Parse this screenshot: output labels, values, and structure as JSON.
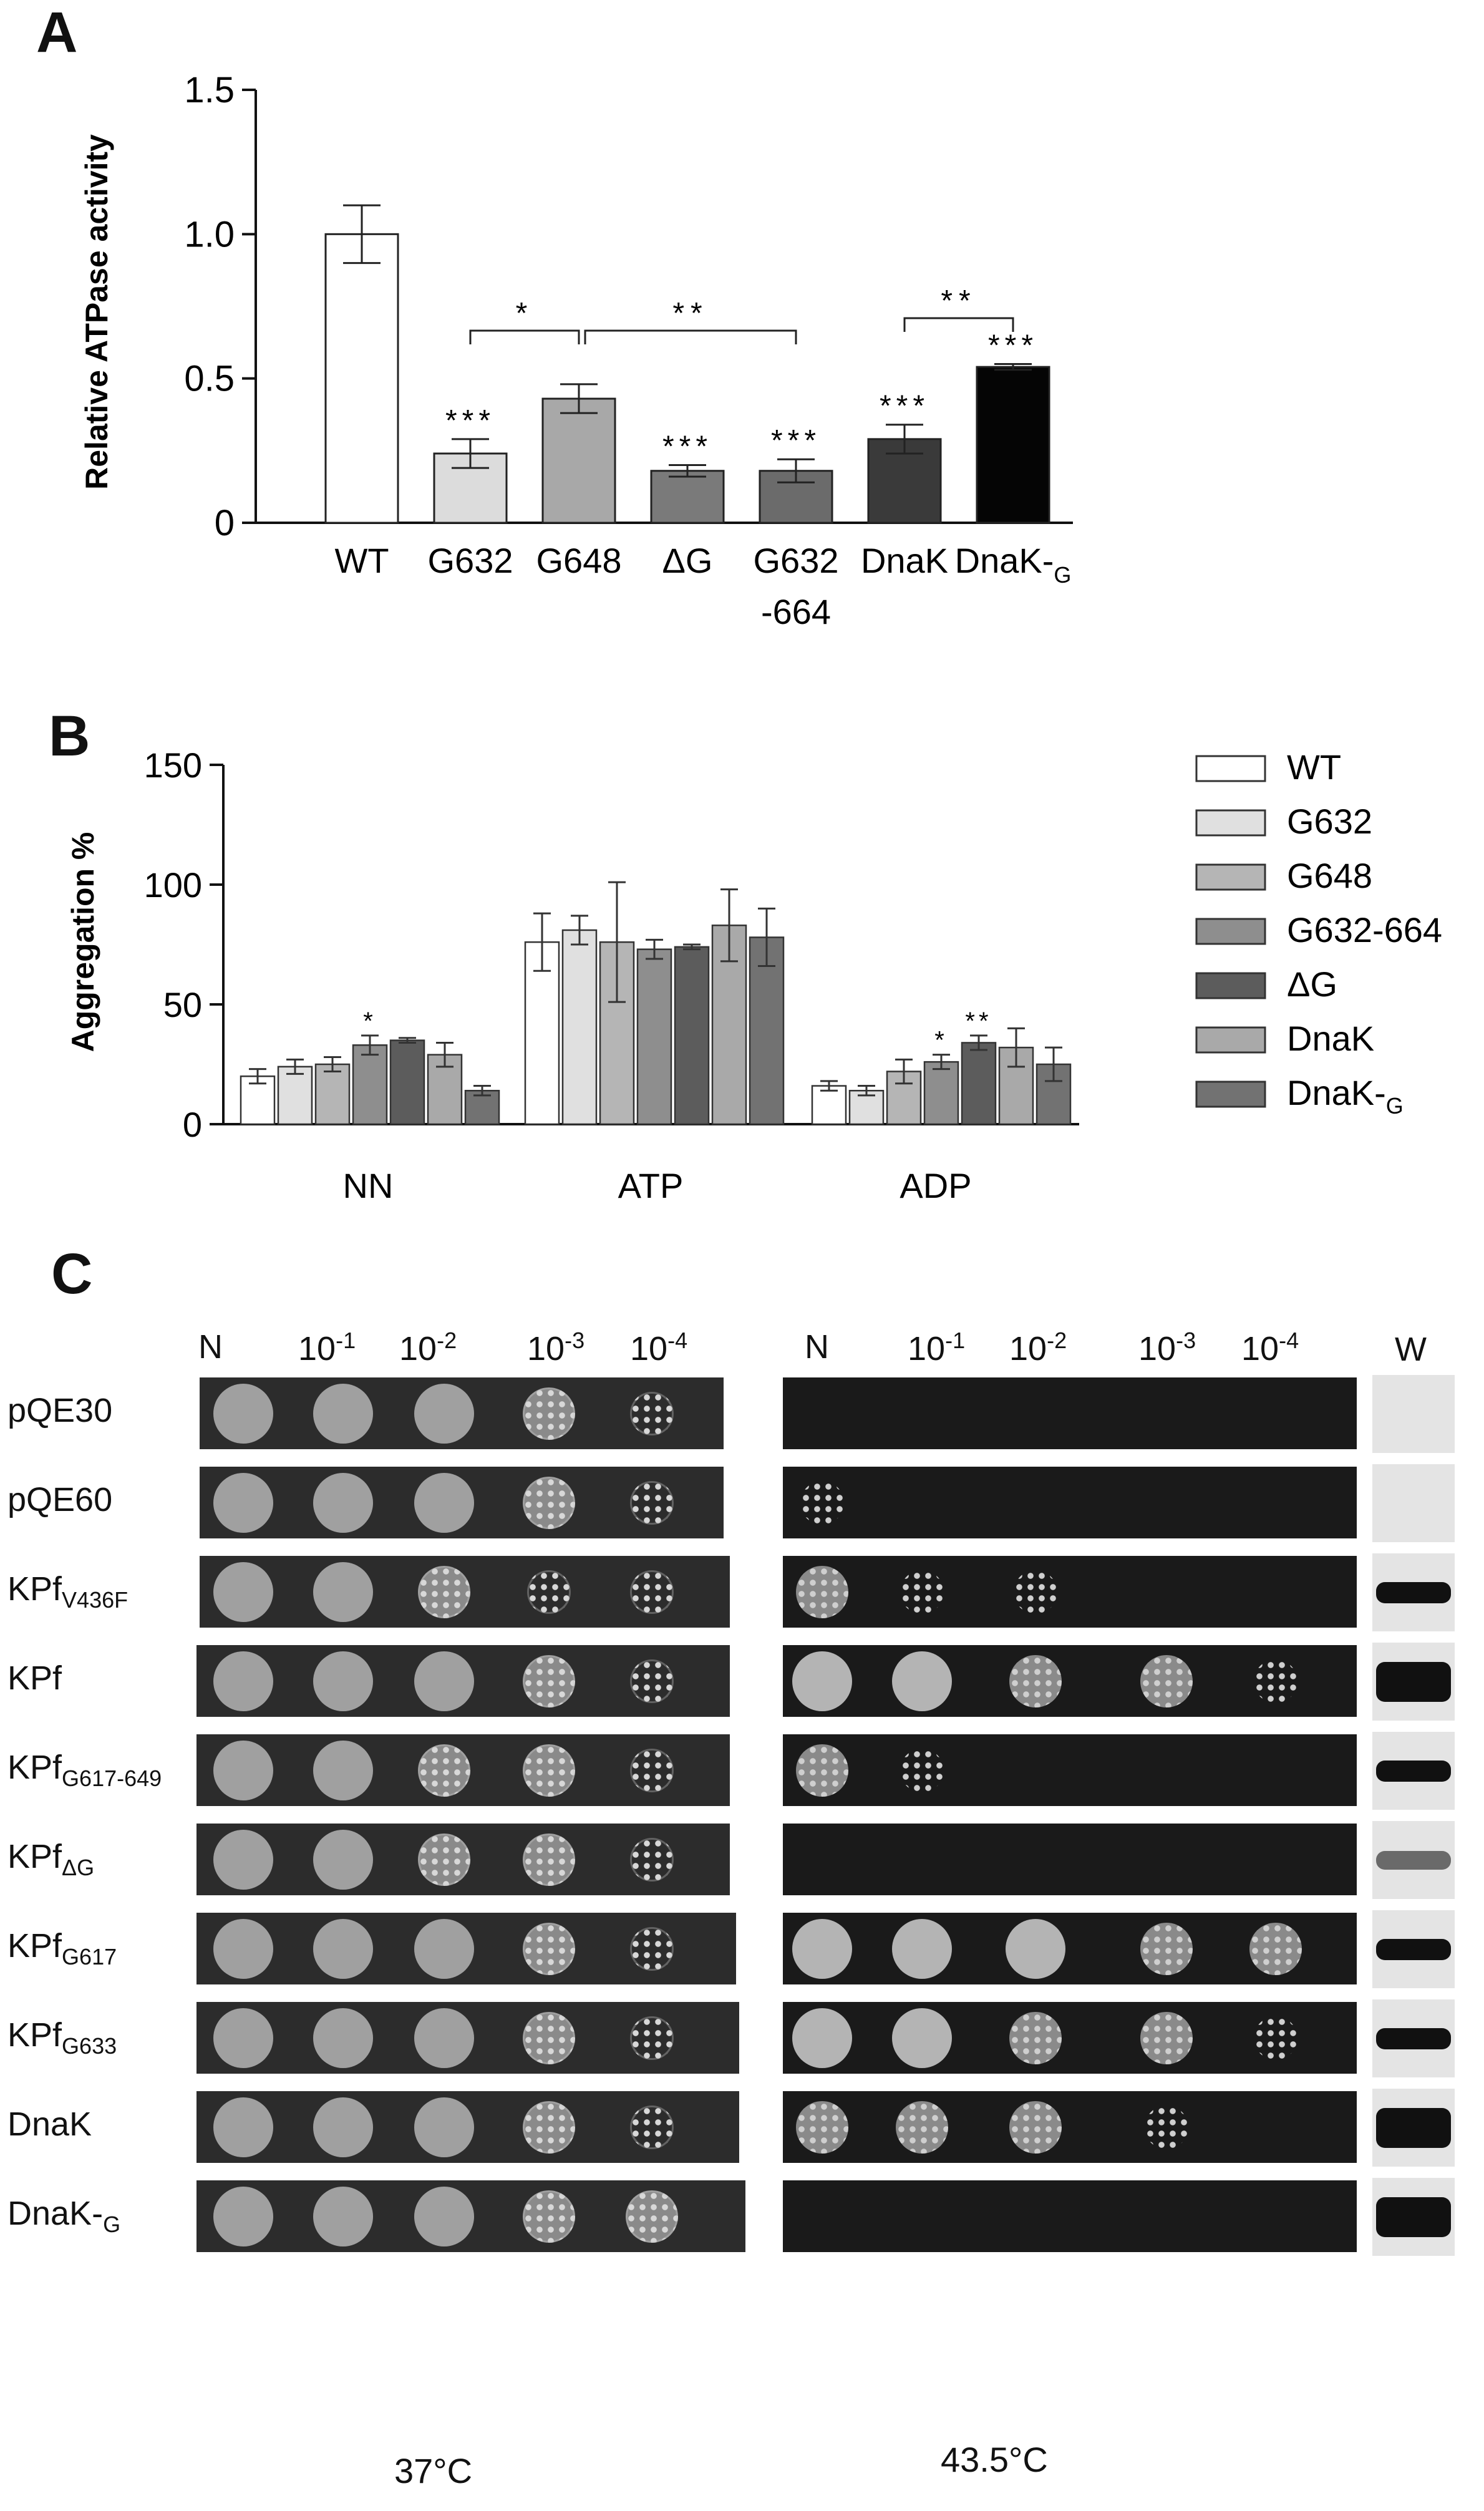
{
  "panels": {
    "a": "A",
    "b": "B",
    "c": "C"
  },
  "chart_data": [
    {
      "type": "bar",
      "panel": "A",
      "ylabel": "Relative ATPase activity",
      "ylim": [
        0,
        1.5
      ],
      "yticks": [
        "0",
        "0.5",
        "1.0",
        "1.5"
      ],
      "categories": [
        "WT",
        "G632",
        "G648",
        "ΔG",
        "G632\n-664",
        "DnaK",
        "DnaK-G"
      ],
      "category_labels": [
        {
          "main": "WT",
          "sub": ""
        },
        {
          "main": "G632",
          "sub": ""
        },
        {
          "main": "G648",
          "sub": ""
        },
        {
          "main": "ΔG",
          "sub": ""
        },
        {
          "main": "G632",
          "sub": "-664"
        },
        {
          "main": "DnaK-",
          "sub": ""
        },
        {
          "main": "DnaK-",
          "sub": "G"
        }
      ],
      "values": [
        1.0,
        0.24,
        0.43,
        0.18,
        0.18,
        0.29,
        0.54
      ],
      "errors": [
        0.1,
        0.05,
        0.05,
        0.02,
        0.04,
        0.05,
        0.01
      ],
      "colors": [
        "#ffffff",
        "#dcdcdc",
        "#a8a8a8",
        "#7a7a7a",
        "#6b6b6b",
        "#3a3a3a",
        "#050505"
      ],
      "significance": [
        "",
        "***",
        "",
        "***",
        "***",
        "***",
        "***"
      ],
      "brackets": [
        {
          "from": 1,
          "to": 2,
          "label": "*"
        },
        {
          "from": 2,
          "to": 4,
          "label": "**"
        },
        {
          "from": 5,
          "to": 6,
          "label": "**"
        }
      ]
    },
    {
      "type": "bar",
      "panel": "B",
      "ylabel": "Aggregation %",
      "ylim": [
        0,
        150
      ],
      "yticks": [
        "0",
        "50",
        "100",
        "150"
      ],
      "categories": [
        "NN",
        "ATP",
        "ADP"
      ],
      "legend_position": "right",
      "series": [
        {
          "name": "WT",
          "sub": "",
          "color": "#ffffff",
          "values": [
            20,
            76,
            16
          ],
          "errors": [
            3,
            12,
            2
          ],
          "stars": [
            "",
            "",
            ""
          ]
        },
        {
          "name": "G632",
          "sub": "",
          "color": "#e0e0e0",
          "values": [
            24,
            81,
            14
          ],
          "errors": [
            3,
            6,
            2
          ],
          "stars": [
            "",
            "",
            ""
          ]
        },
        {
          "name": "G648",
          "sub": "",
          "color": "#b5b5b5",
          "values": [
            25,
            76,
            22
          ],
          "errors": [
            3,
            25,
            5
          ],
          "stars": [
            "",
            "",
            ""
          ]
        },
        {
          "name": "G632-664",
          "sub": "",
          "color": "#8e8e8e",
          "values": [
            33,
            73,
            26
          ],
          "errors": [
            4,
            4,
            3
          ],
          "stars": [
            "*",
            "",
            "*"
          ]
        },
        {
          "name": "ΔG",
          "sub": "",
          "color": "#5c5c5c",
          "values": [
            35,
            74,
            34
          ],
          "errors": [
            1,
            1,
            3
          ],
          "stars": [
            "",
            "",
            "**"
          ]
        },
        {
          "name": "DnaK",
          "sub": "",
          "color": "#a9a9a9",
          "values": [
            29,
            83,
            32
          ],
          "errors": [
            5,
            15,
            8
          ],
          "stars": [
            "",
            "",
            ""
          ]
        },
        {
          "name": "DnaK-",
          "sub": "G",
          "color": "#727272",
          "values": [
            14,
            78,
            25
          ],
          "errors": [
            2,
            12,
            7
          ],
          "stars": [
            "",
            "",
            ""
          ]
        }
      ]
    }
  ],
  "panel_c": {
    "dilutions_left": [
      {
        "b": "N",
        "e": ""
      },
      {
        "b": "10",
        "e": "-1"
      },
      {
        "b": "10",
        "e": "-2"
      },
      {
        "b": "10",
        "e": "-3"
      },
      {
        "b": "10",
        "e": "-4"
      }
    ],
    "dilutions_right": [
      {
        "b": "N",
        "e": ""
      },
      {
        "b": "10",
        "e": "-1"
      },
      {
        "b": "10",
        "e": "-2"
      },
      {
        "b": "10",
        "e": "-3"
      },
      {
        "b": "10",
        "e": "-4"
      }
    ],
    "w_label": "W",
    "temp_left": "37°C",
    "temp_right": "43.5°C",
    "rows": [
      {
        "main": "pQE30",
        "sub": "",
        "left": [
          3,
          3,
          3,
          2,
          1
        ],
        "right": [
          0,
          0,
          0,
          0,
          0
        ],
        "w": 0
      },
      {
        "main": "pQE60",
        "sub": "",
        "left": [
          3,
          3,
          3,
          2,
          1
        ],
        "right": [
          1,
          0,
          0,
          0,
          0
        ],
        "w": 0
      },
      {
        "main": "KPf",
        "sub": "V436F",
        "left": [
          3,
          3,
          2,
          1,
          1
        ],
        "right": [
          2,
          1,
          1,
          0,
          0
        ],
        "w": 2
      },
      {
        "main": "KPf",
        "sub": "",
        "left": [
          3,
          3,
          3,
          2,
          1
        ],
        "right": [
          3,
          3,
          2,
          2,
          1
        ],
        "w": 3
      },
      {
        "main": "KPf",
        "sub": "G617-649",
        "left": [
          3,
          3,
          2,
          2,
          1
        ],
        "right": [
          2,
          1,
          0,
          0,
          0
        ],
        "w": 2
      },
      {
        "main": "KPf",
        "sub": "ΔG",
        "left": [
          3,
          3,
          2,
          2,
          1
        ],
        "right": [
          0,
          0,
          0,
          0,
          0
        ],
        "w": 1
      },
      {
        "main": "KPf",
        "sub": "G617",
        "left": [
          3,
          3,
          3,
          2,
          1
        ],
        "right": [
          3,
          3,
          3,
          2,
          2
        ],
        "w": 2
      },
      {
        "main": "KPf",
        "sub": "G633",
        "left": [
          3,
          3,
          3,
          2,
          1
        ],
        "right": [
          3,
          3,
          2,
          2,
          1
        ],
        "w": 2
      },
      {
        "main": "DnaK",
        "sub": "",
        "left": [
          3,
          3,
          3,
          2,
          1
        ],
        "right": [
          2,
          2,
          2,
          1,
          0
        ],
        "w": 3
      },
      {
        "main": "DnaK-",
        "sub": "G",
        "left": [
          3,
          3,
          3,
          2,
          2
        ],
        "right": [
          0,
          0,
          0,
          0,
          0
        ],
        "w": 3
      }
    ]
  }
}
